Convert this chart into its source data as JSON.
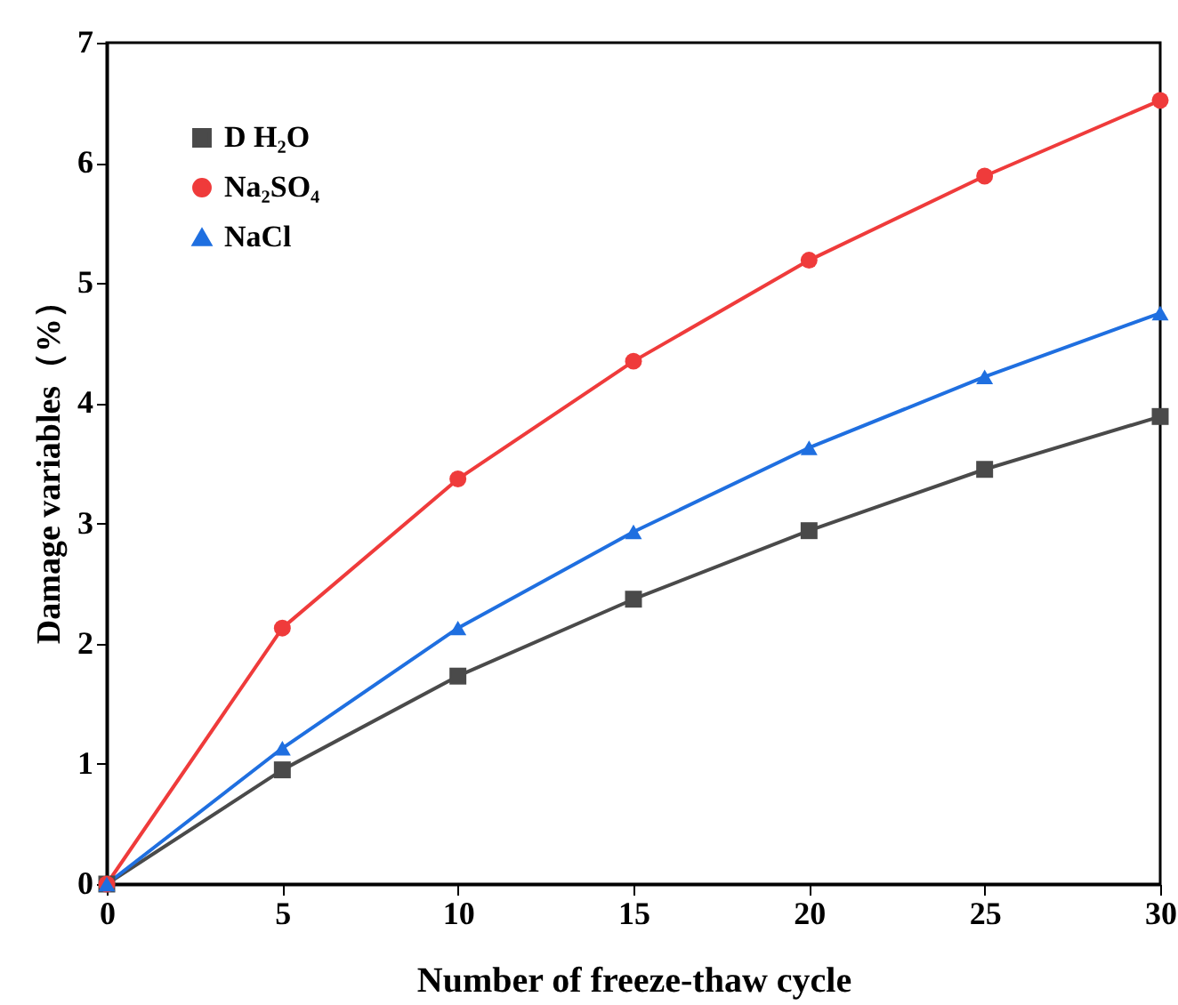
{
  "chart_data": {
    "type": "line",
    "xlabel": "Number of freeze-thaw cycle",
    "ylabel": "Damage variables（%）",
    "x": [
      0,
      5,
      10,
      15,
      20,
      25,
      30
    ],
    "series": [
      {
        "name": "D H₂O",
        "color": "#4a4a4a",
        "marker": "square",
        "values": [
          0,
          0.95,
          1.73,
          2.37,
          2.94,
          3.45,
          3.89
        ]
      },
      {
        "name": "Na₂SO₄",
        "color": "#ef3b3b",
        "marker": "circle",
        "values": [
          0,
          2.13,
          3.37,
          4.35,
          5.19,
          5.89,
          6.52
        ]
      },
      {
        "name": "NaCl",
        "color": "#1f6fe0",
        "marker": "triangle",
        "values": [
          0,
          1.13,
          2.13,
          2.93,
          3.63,
          4.22,
          4.75
        ]
      }
    ],
    "xlim": [
      0,
      30
    ],
    "xticks": [
      0,
      5,
      10,
      15,
      20,
      25,
      30
    ],
    "ylim": [
      0,
      7
    ],
    "yticks": [
      0,
      1,
      2,
      3,
      4,
      5,
      6,
      7
    ],
    "legend": "top left",
    "grid": false,
    "line_style": "solid"
  }
}
